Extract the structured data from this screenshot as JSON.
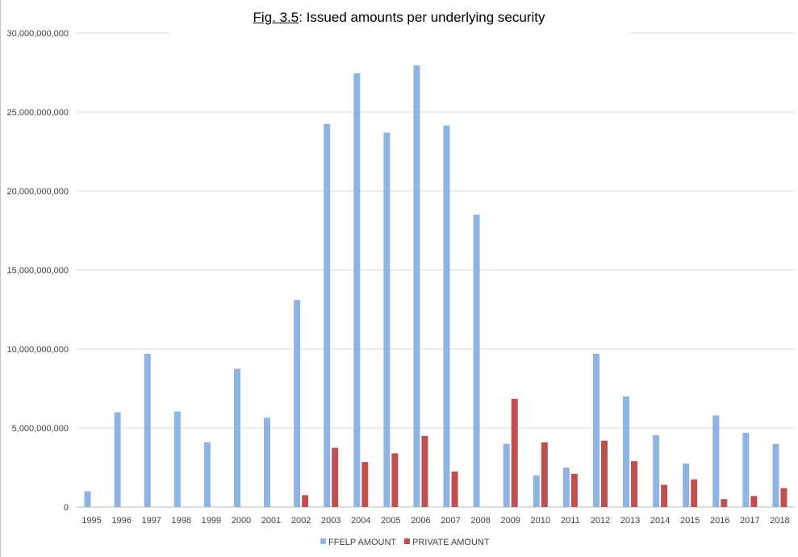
{
  "chart_data": {
    "type": "bar",
    "title_prefix": "Fig. 3.5",
    "title_suffix": ": Issued amounts per underlying security",
    "xlabel": "",
    "ylabel": "",
    "ylim": [
      0,
      30000000000
    ],
    "yticks": [
      0,
      5000000000,
      10000000000,
      15000000000,
      20000000000,
      25000000000,
      30000000000
    ],
    "ytick_labels": [
      "0",
      "5,000,000,000",
      "10,000,000,000",
      "15,000,000,000",
      "20,000,000,000",
      "25,000,000,000",
      "30,000,000,000"
    ],
    "grid": true,
    "legend_position": "bottom",
    "categories": [
      "1995",
      "1996",
      "1997",
      "1998",
      "1999",
      "2000",
      "2001",
      "2002",
      "2003",
      "2004",
      "2005",
      "2006",
      "2007",
      "2008",
      "2009",
      "2010",
      "2011",
      "2012",
      "2013",
      "2014",
      "2015",
      "2016",
      "2017",
      "2018"
    ],
    "series": [
      {
        "name": "FFELP AMOUNT",
        "color": "#8eb4e3",
        "values": [
          1000000000,
          6000000000,
          9700000000,
          6050000000,
          4100000000,
          8750000000,
          5650000000,
          13100000000,
          24250000000,
          27450000000,
          23700000000,
          27950000000,
          24150000000,
          18500000000,
          4000000000,
          2000000000,
          2500000000,
          9700000000,
          7000000000,
          4550000000,
          2750000000,
          5800000000,
          4700000000,
          4000000000
        ]
      },
      {
        "name": "PRIVATE AMOUNT",
        "color": "#c0504d",
        "values": [
          0,
          0,
          0,
          0,
          0,
          0,
          0,
          750000000,
          3750000000,
          2850000000,
          3400000000,
          4500000000,
          2250000000,
          0,
          6850000000,
          4100000000,
          2100000000,
          4200000000,
          2900000000,
          1400000000,
          1750000000,
          500000000,
          700000000,
          1200000000
        ]
      }
    ]
  }
}
